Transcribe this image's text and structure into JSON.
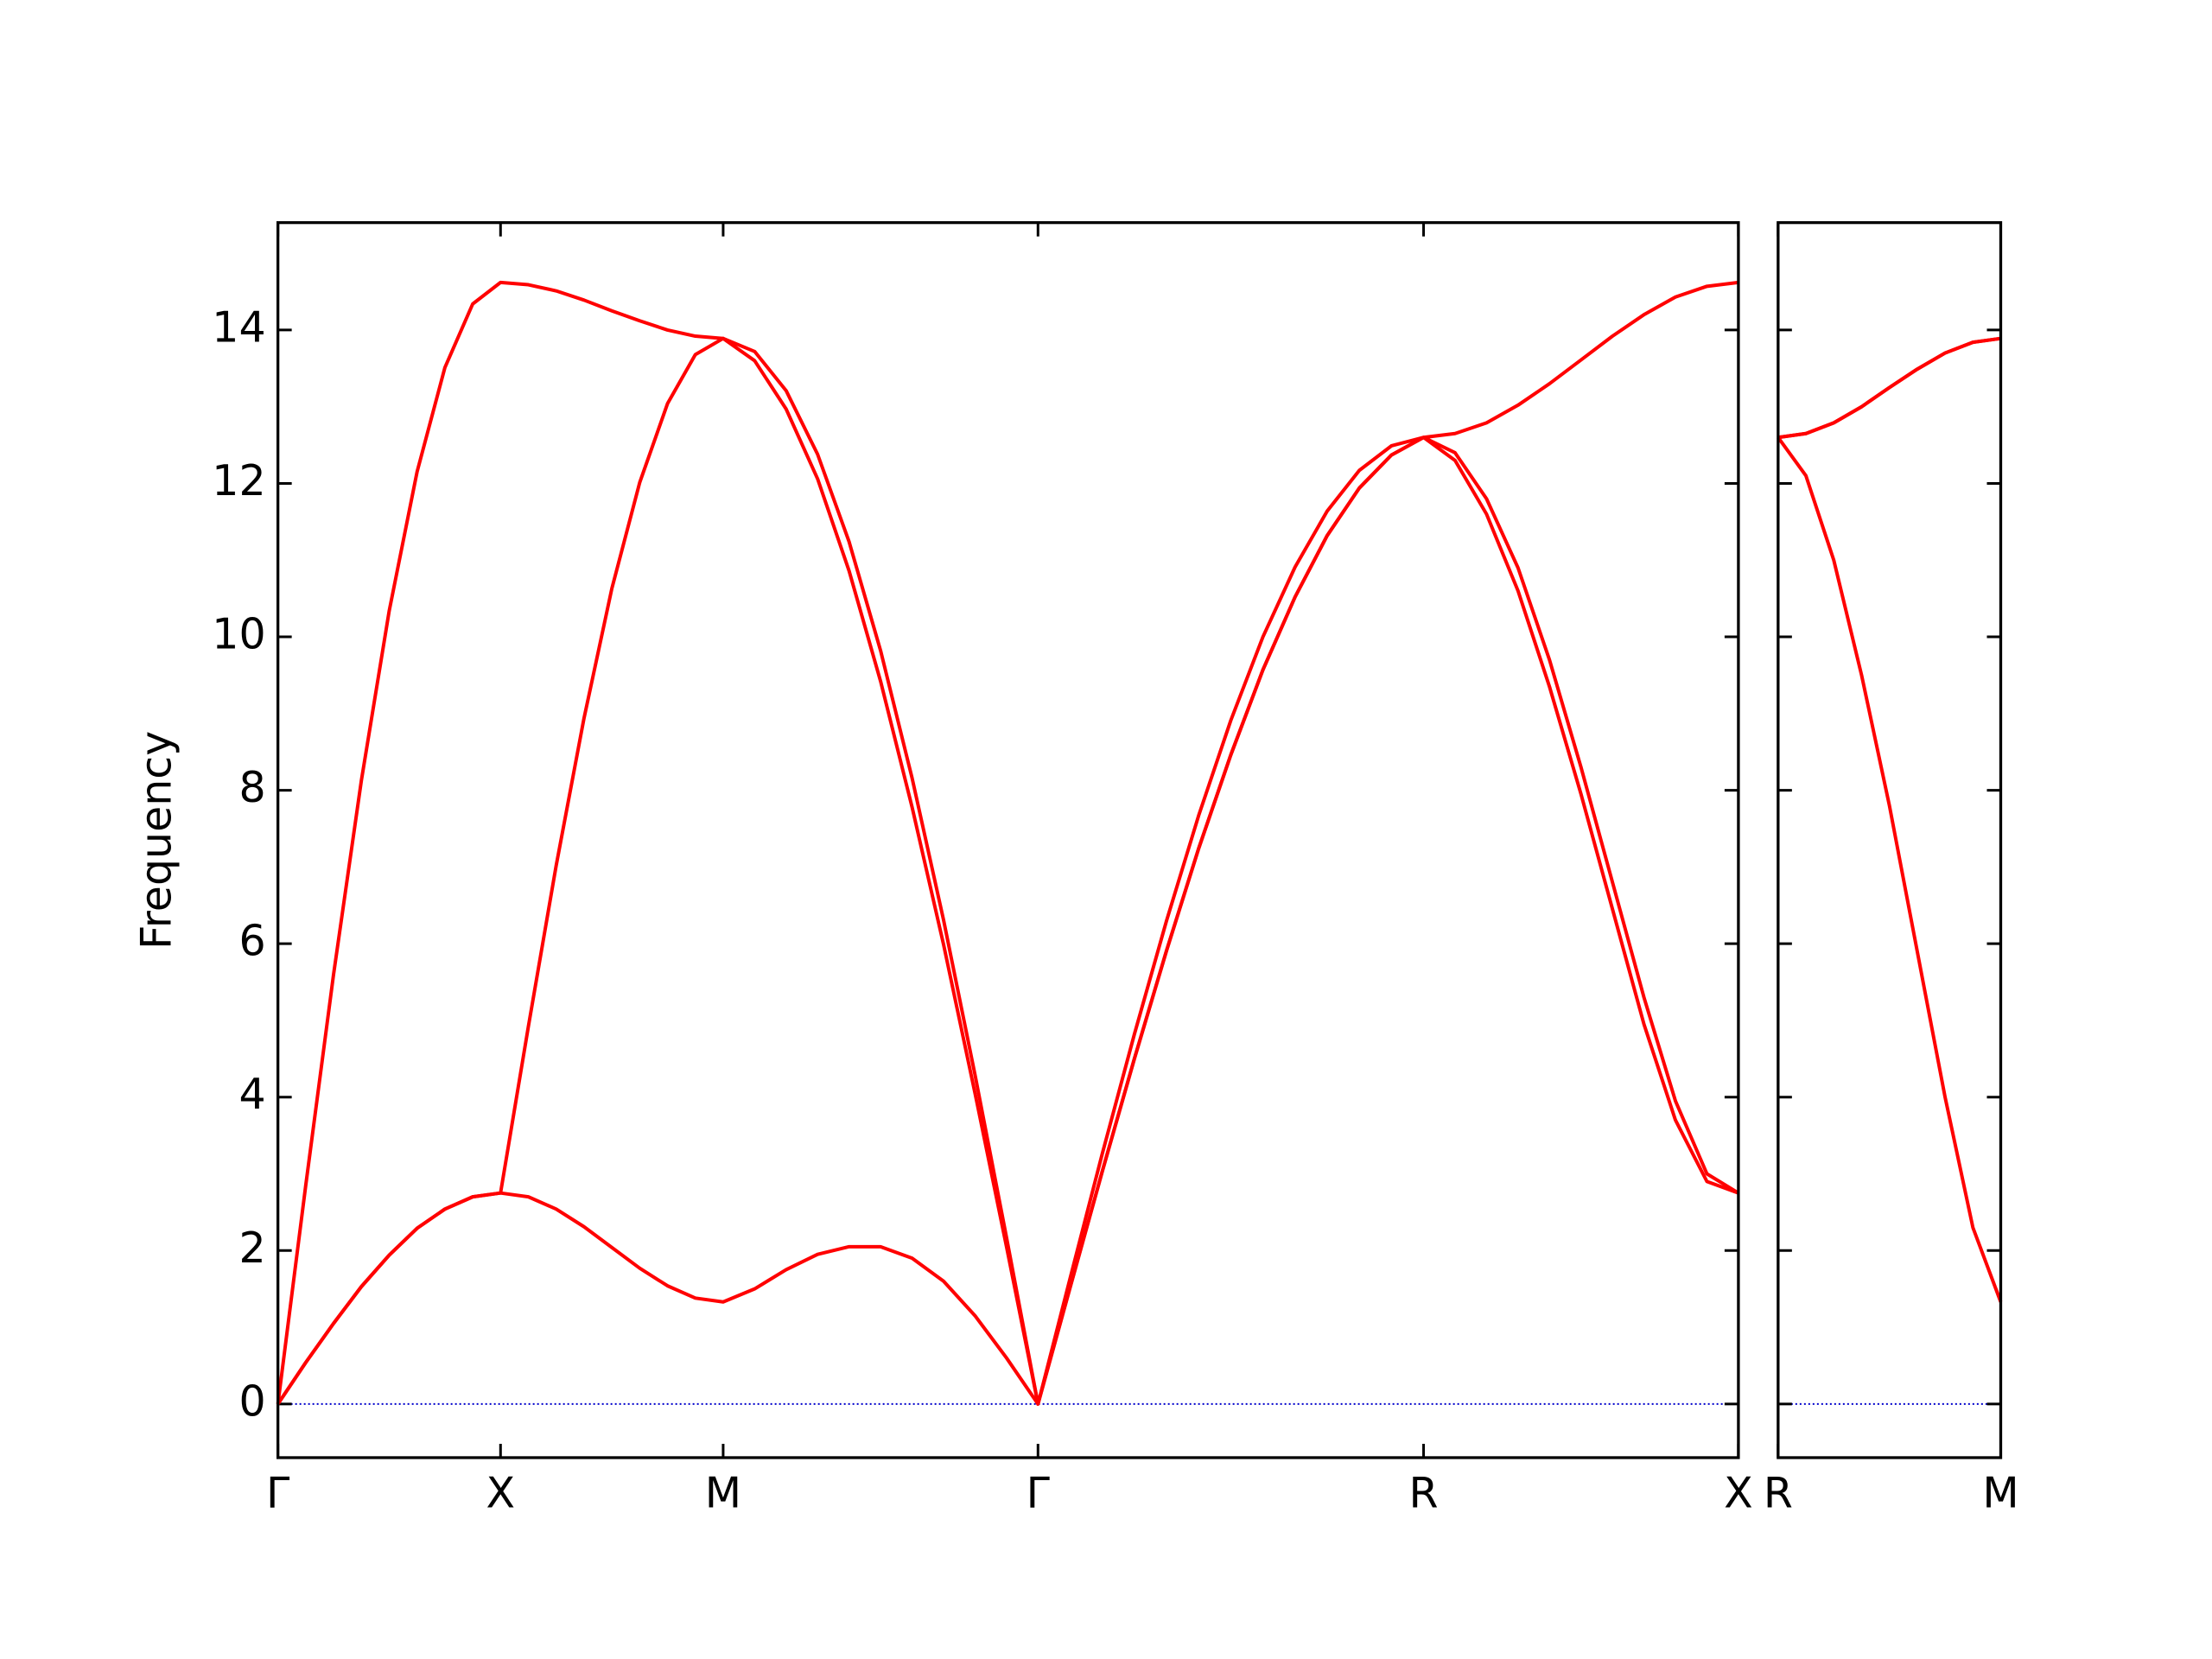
{
  "chart_data": [
    {
      "type": "line",
      "ylabel": "Frequency",
      "x": [
        0,
        0.0625,
        0.125,
        0.1875,
        0.25,
        0.3125,
        0.375,
        0.4375,
        0.5,
        0.5625,
        0.625,
        0.6875,
        0.75,
        0.8125,
        0.875,
        0.9375,
        1.0,
        1.0707,
        1.1414,
        1.2121,
        1.2828,
        1.3536,
        1.4243,
        1.495,
        1.5657,
        1.6364,
        1.7071,
        1.7793,
        1.8514,
        1.9236,
        1.9958,
        2.0679,
        2.1401,
        2.2123,
        2.2845,
        2.3566,
        2.4288,
        2.5009,
        2.5731,
        2.6438,
        2.7145,
        2.7852,
        2.8559,
        2.9267,
        2.9974,
        3.0681,
        3.1388,
        3.2095,
        3.2802
      ],
      "series": [
        {
          "color": "#ff0000",
          "values": [
            0,
            0.54,
            1.05,
            1.53,
            1.94,
            2.29,
            2.54,
            2.7,
            2.75,
            2.7,
            2.54,
            2.31,
            2.04,
            1.77,
            1.54,
            1.38,
            1.33,
            1.5,
            1.75,
            1.95,
            2.05,
            2.05,
            1.9,
            1.6,
            1.15,
            0.6,
            0,
            1.52,
            3.03,
            4.5,
            5.91,
            7.24,
            8.46,
            9.57,
            10.52,
            11.32,
            11.94,
            12.37,
            12.6,
            12.3,
            11.6,
            10.6,
            9.35,
            7.95,
            6.45,
            4.95,
            3.7,
            2.9,
            2.75
          ]
        },
        {
          "color": "#ff0000",
          "values": [
            0,
            0.54,
            1.05,
            1.53,
            1.94,
            2.29,
            2.54,
            2.7,
            2.75,
            4.92,
            7.02,
            8.94,
            10.63,
            12.01,
            13.04,
            13.68,
            13.89,
            13.6,
            12.97,
            12.06,
            10.86,
            9.42,
            7.78,
            5.99,
            4.05,
            2.05,
            0,
            1.52,
            3.03,
            4.5,
            5.91,
            7.24,
            8.46,
            9.57,
            10.52,
            11.32,
            11.94,
            12.37,
            12.6,
            12.4,
            11.8,
            10.9,
            9.7,
            8.3,
            6.8,
            5.3,
            3.95,
            3.0,
            2.75
          ]
        },
        {
          "color": "#ff0000",
          "values": [
            0,
            2.85,
            5.6,
            8.13,
            10.34,
            12.15,
            13.51,
            14.34,
            14.62,
            14.59,
            14.51,
            14.39,
            14.25,
            14.12,
            14.0,
            13.92,
            13.89,
            13.72,
            13.21,
            12.38,
            11.24,
            9.82,
            8.16,
            6.31,
            4.29,
            2.17,
            0,
            1.64,
            3.26,
            4.82,
            6.3,
            7.67,
            8.91,
            10.0,
            10.91,
            11.64,
            12.17,
            12.49,
            12.6,
            12.65,
            12.79,
            13.02,
            13.3,
            13.61,
            13.92,
            14.2,
            14.43,
            14.57,
            14.62
          ]
        }
      ],
      "xlim": [
        0,
        3.2802
      ],
      "xticks": [
        {
          "value": 0,
          "label": "Γ"
        },
        {
          "value": 0.5,
          "label": "X"
        },
        {
          "value": 1.0,
          "label": "M"
        },
        {
          "value": 1.7071,
          "label": "Γ"
        },
        {
          "value": 2.5731,
          "label": "R"
        },
        {
          "value": 3.2802,
          "label": "X"
        }
      ],
      "ylim": [
        -0.7,
        15.4
      ],
      "yticks": [
        0,
        2,
        4,
        6,
        8,
        10,
        12,
        14
      ],
      "ytick_labels": true,
      "reference_line": {
        "value": 0,
        "color": "#0000cc"
      }
    },
    {
      "type": "line",
      "x": [
        0,
        0.0625,
        0.125,
        0.1875,
        0.25,
        0.3125,
        0.375,
        0.4375,
        0.5
      ],
      "series": [
        {
          "color": "#ff0000",
          "values": [
            12.6,
            12.1,
            11.0,
            9.5,
            7.8,
            5.9,
            4.0,
            2.3,
            1.33
          ]
        },
        {
          "color": "#ff0000",
          "values": [
            12.6,
            12.65,
            12.79,
            13.0,
            13.25,
            13.49,
            13.7,
            13.84,
            13.89
          ]
        },
        {
          "color": "#ff0000",
          "values": [
            12.6,
            12.65,
            12.79,
            13.0,
            13.25,
            13.49,
            13.7,
            13.84,
            13.89
          ]
        }
      ],
      "xlim": [
        0,
        0.5
      ],
      "xticks": [
        {
          "value": 0,
          "label": "R"
        },
        {
          "value": 0.5,
          "label": "M"
        }
      ],
      "ylim": [
        -0.7,
        15.4
      ],
      "yticks": [
        0,
        2,
        4,
        6,
        8,
        10,
        12,
        14
      ],
      "ytick_labels": false,
      "reference_line": {
        "value": 0,
        "color": "#0000cc"
      }
    }
  ]
}
